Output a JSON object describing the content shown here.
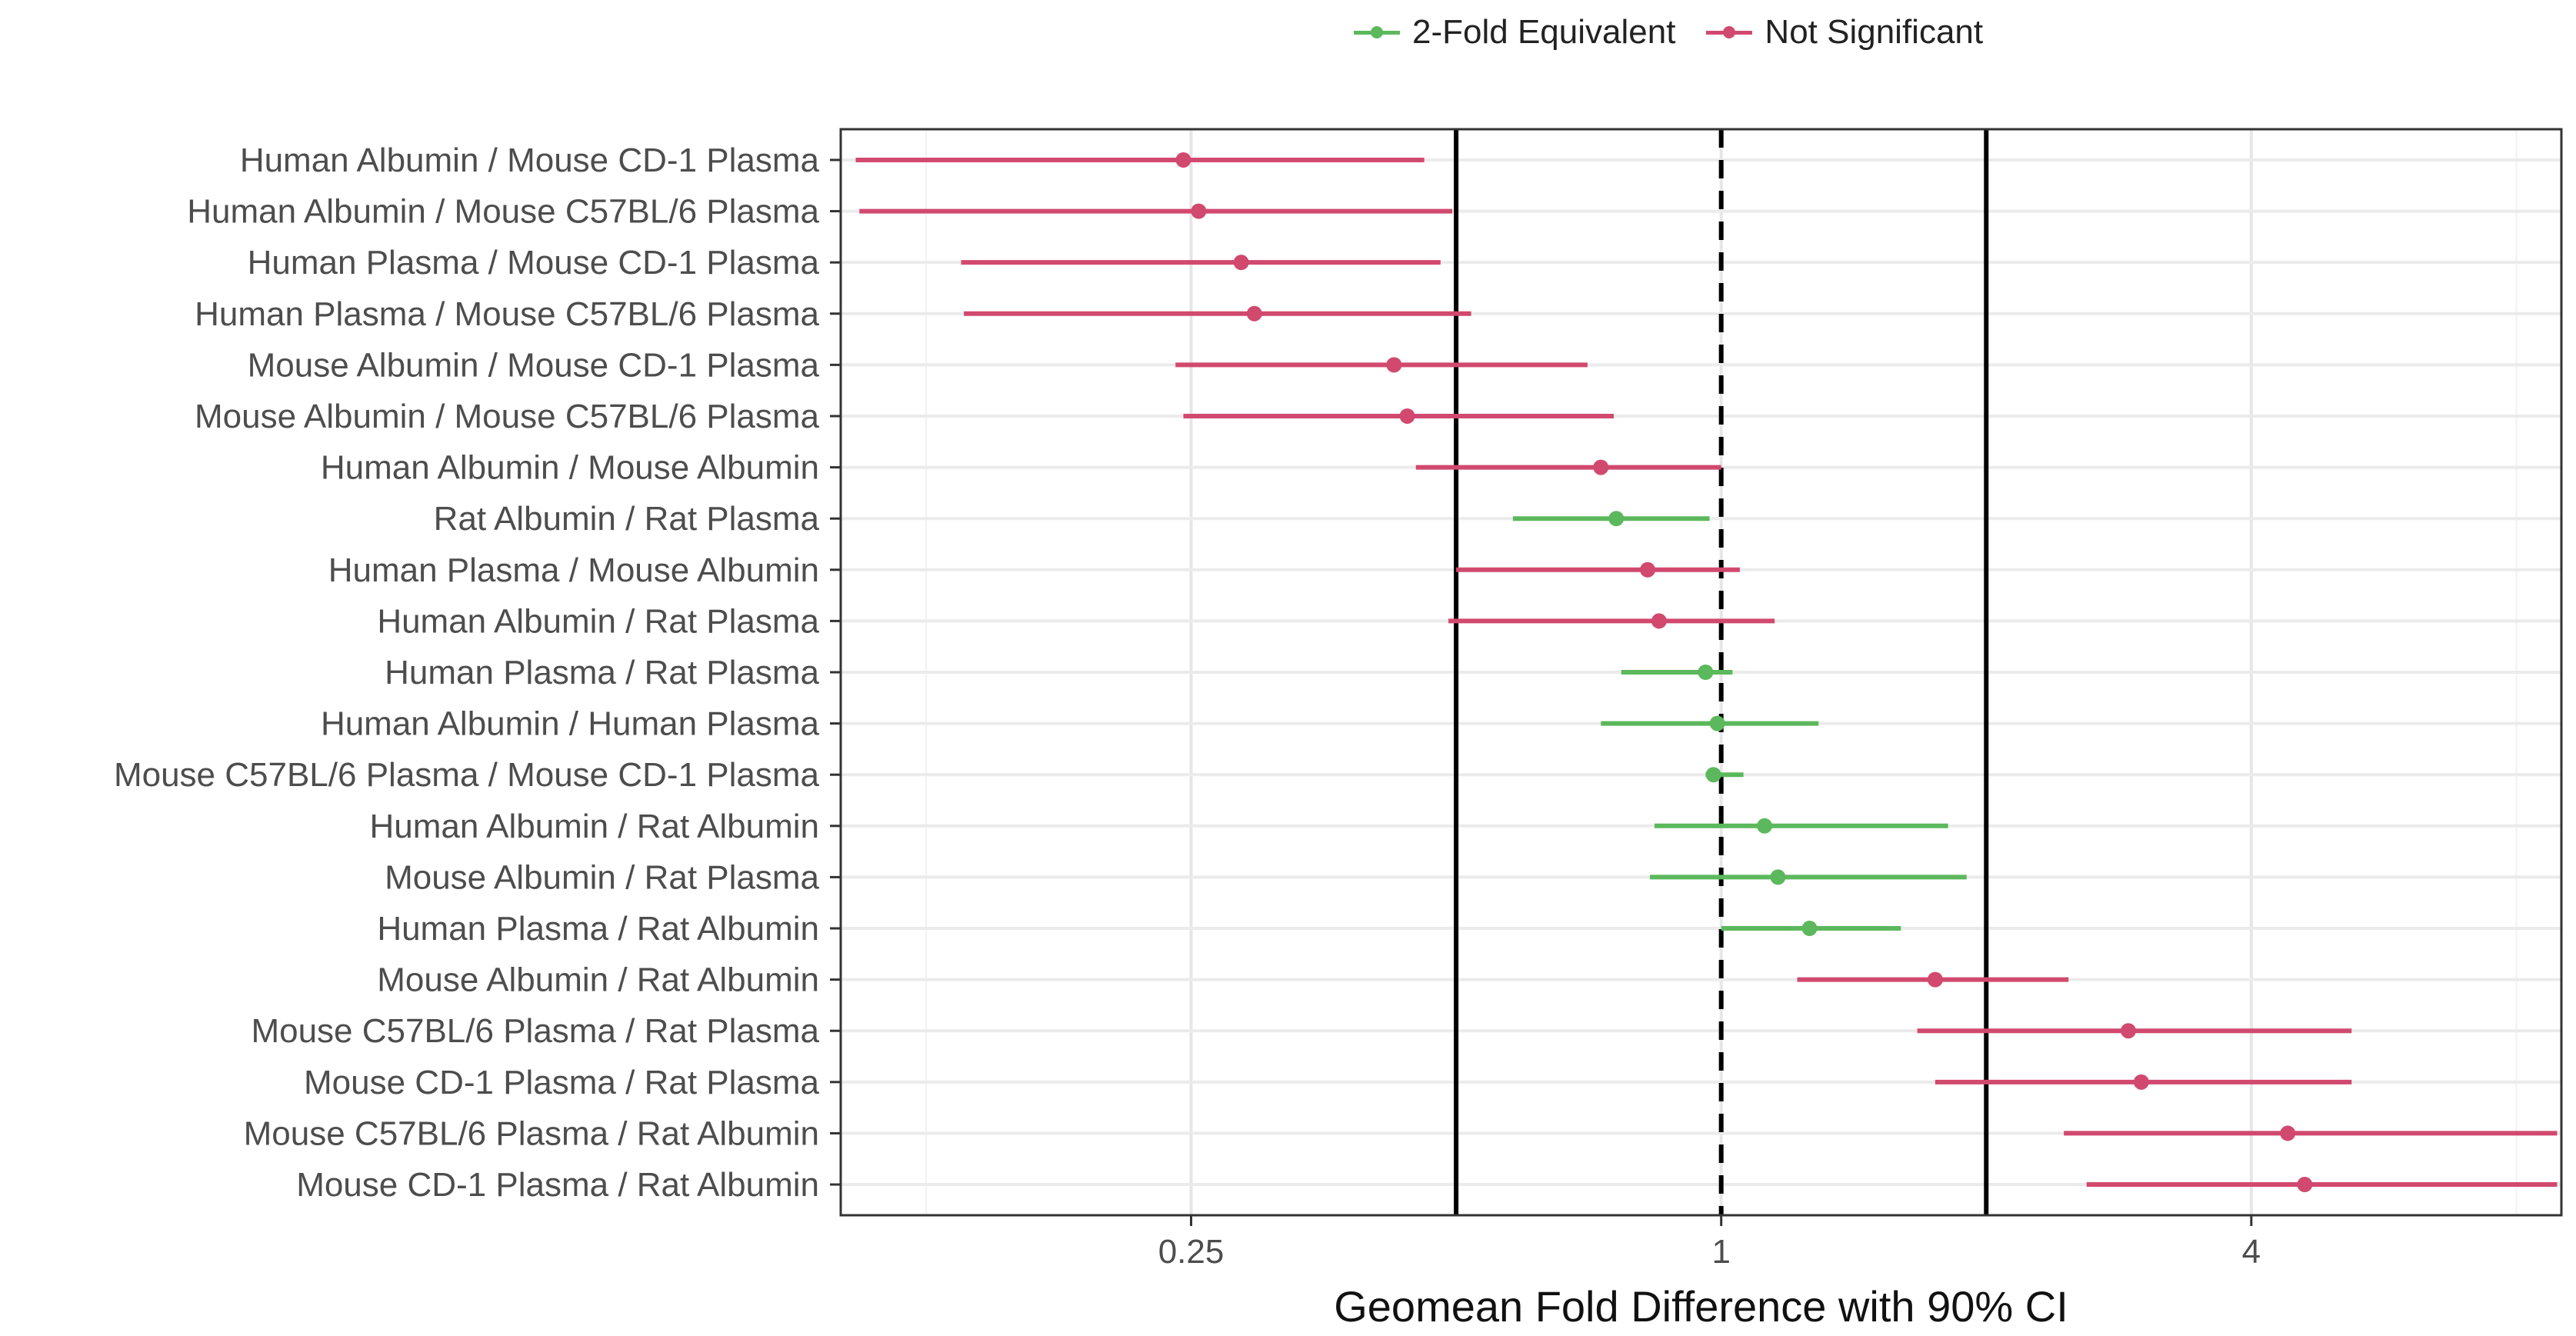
{
  "chart_data": {
    "type": "forest",
    "title": "",
    "xlabel": "Geomean Fold Difference with 90% CI",
    "ylabel": "",
    "x_scale": "log2",
    "xlim": [
      0.1,
      9.0
    ],
    "x_ticks": [
      0.25,
      1,
      4
    ],
    "x_tick_labels": [
      "0.25",
      "1",
      "4"
    ],
    "grid": true,
    "reference_lines": [
      {
        "value": 0.5,
        "style": "solid"
      },
      {
        "value": 1,
        "style": "dashed"
      },
      {
        "value": 2,
        "style": "solid"
      }
    ],
    "legend": {
      "position": "top",
      "entries": [
        {
          "name": "2-Fold Equivalent",
          "color": "#5cb85c"
        },
        {
          "name": "Not Significant",
          "color": "#d1496f"
        }
      ]
    },
    "rows": [
      {
        "label": "Human Albumin / Mouse CD-1 Plasma",
        "estimate": 0.245,
        "lower": 0.104,
        "upper": 0.46,
        "group": "Not Significant"
      },
      {
        "label": "Human Albumin / Mouse C57BL/6 Plasma",
        "estimate": 0.255,
        "lower": 0.105,
        "upper": 0.495,
        "group": "Not Significant"
      },
      {
        "label": "Human Plasma / Mouse CD-1 Plasma",
        "estimate": 0.285,
        "lower": 0.137,
        "upper": 0.48,
        "group": "Not Significant"
      },
      {
        "label": "Human Plasma / Mouse C57BL/6 Plasma",
        "estimate": 0.295,
        "lower": 0.138,
        "upper": 0.52,
        "group": "Not Significant"
      },
      {
        "label": "Mouse Albumin / Mouse CD-1 Plasma",
        "estimate": 0.425,
        "lower": 0.24,
        "upper": 0.705,
        "group": "Not Significant"
      },
      {
        "label": "Mouse Albumin / Mouse C57BL/6 Plasma",
        "estimate": 0.44,
        "lower": 0.245,
        "upper": 0.755,
        "group": "Not Significant"
      },
      {
        "label": "Human Albumin / Mouse Albumin",
        "estimate": 0.73,
        "lower": 0.45,
        "upper": 1.0,
        "group": "Not Significant"
      },
      {
        "label": "Rat Albumin / Rat Plasma",
        "estimate": 0.76,
        "lower": 0.58,
        "upper": 0.97,
        "group": "2-Fold Equivalent"
      },
      {
        "label": "Human Plasma / Mouse Albumin",
        "estimate": 0.825,
        "lower": 0.5,
        "upper": 1.05,
        "group": "Not Significant"
      },
      {
        "label": "Human Albumin / Rat Plasma",
        "estimate": 0.85,
        "lower": 0.49,
        "upper": 1.15,
        "group": "Not Significant"
      },
      {
        "label": "Human Plasma / Rat Plasma",
        "estimate": 0.96,
        "lower": 0.77,
        "upper": 1.03,
        "group": "2-Fold Equivalent"
      },
      {
        "label": "Human Albumin / Human Plasma",
        "estimate": 0.99,
        "lower": 0.73,
        "upper": 1.29,
        "group": "2-Fold Equivalent"
      },
      {
        "label": "Mouse C57BL/6 Plasma / Mouse CD-1 Plasma",
        "estimate": 0.98,
        "lower": 0.96,
        "upper": 1.06,
        "group": "2-Fold Equivalent"
      },
      {
        "label": "Human Albumin / Rat Albumin",
        "estimate": 1.12,
        "lower": 0.84,
        "upper": 1.81,
        "group": "2-Fold Equivalent"
      },
      {
        "label": "Mouse Albumin / Rat Plasma",
        "estimate": 1.16,
        "lower": 0.83,
        "upper": 1.9,
        "group": "2-Fold Equivalent"
      },
      {
        "label": "Human Plasma / Rat Albumin",
        "estimate": 1.26,
        "lower": 1.0,
        "upper": 1.6,
        "group": "2-Fold Equivalent"
      },
      {
        "label": "Mouse Albumin / Rat Albumin",
        "estimate": 1.75,
        "lower": 1.22,
        "upper": 2.48,
        "group": "Not Significant"
      },
      {
        "label": "Mouse C57BL/6 Plasma / Rat Plasma",
        "estimate": 2.9,
        "lower": 1.67,
        "upper": 5.2,
        "group": "Not Significant"
      },
      {
        "label": "Mouse CD-1 Plasma / Rat Plasma",
        "estimate": 3.0,
        "lower": 1.75,
        "upper": 5.2,
        "group": "Not Significant"
      },
      {
        "label": "Mouse C57BL/6 Plasma / Rat Albumin",
        "estimate": 4.4,
        "lower": 2.45,
        "upper": 8.9,
        "group": "Not Significant"
      },
      {
        "label": "Mouse CD-1 Plasma / Rat Albumin",
        "estimate": 4.6,
        "lower": 2.6,
        "upper": 8.9,
        "group": "Not Significant"
      }
    ]
  }
}
